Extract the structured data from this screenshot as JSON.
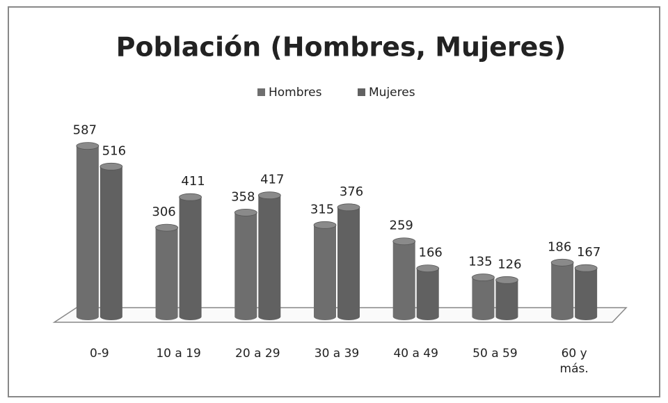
{
  "chart_data": {
    "type": "bar",
    "title": "Población (Hombres, Mujeres)",
    "categories": [
      "0-9",
      "10 a 19",
      "20 a 29",
      "30 a 39",
      "40 a 49",
      "50 a 59",
      "60 y más."
    ],
    "series": [
      {
        "name": "Hombres",
        "color": "#6e6e6e",
        "values": [
          587,
          306,
          358,
          315,
          259,
          135,
          186
        ]
      },
      {
        "name": "Mujeres",
        "color": "#616161",
        "values": [
          516,
          411,
          417,
          376,
          166,
          126,
          167
        ]
      }
    ],
    "legend": "top"
  }
}
